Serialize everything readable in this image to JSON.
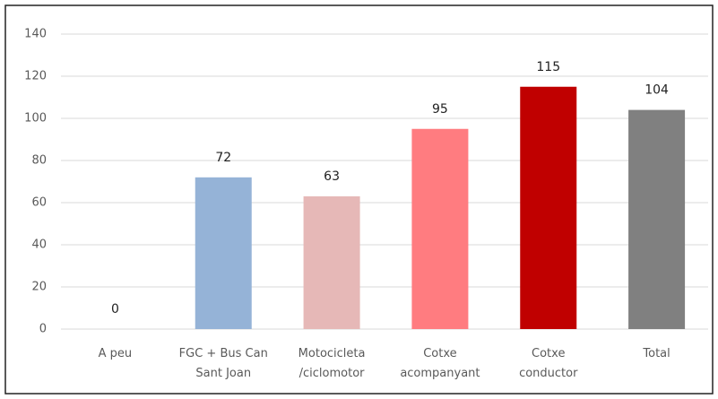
{
  "chart_data": {
    "type": "bar",
    "categories": [
      "A peu",
      "FGC + Bus Can\nSant Joan",
      "Motocicleta\n/ciclomotor",
      "Cotxe\nacompanyant",
      "Cotxe\nconductor",
      "Total"
    ],
    "values": [
      0,
      72,
      63,
      95,
      115,
      104
    ],
    "colors": [
      "#8eaadb",
      "#95b3d7",
      "#e6b8b7",
      "#ff7c80",
      "#c00000",
      "#808080"
    ],
    "ylim": [
      0,
      140
    ],
    "yticks": [
      0,
      20,
      40,
      60,
      80,
      100,
      120,
      140
    ],
    "grid": true,
    "data_labels": true
  }
}
